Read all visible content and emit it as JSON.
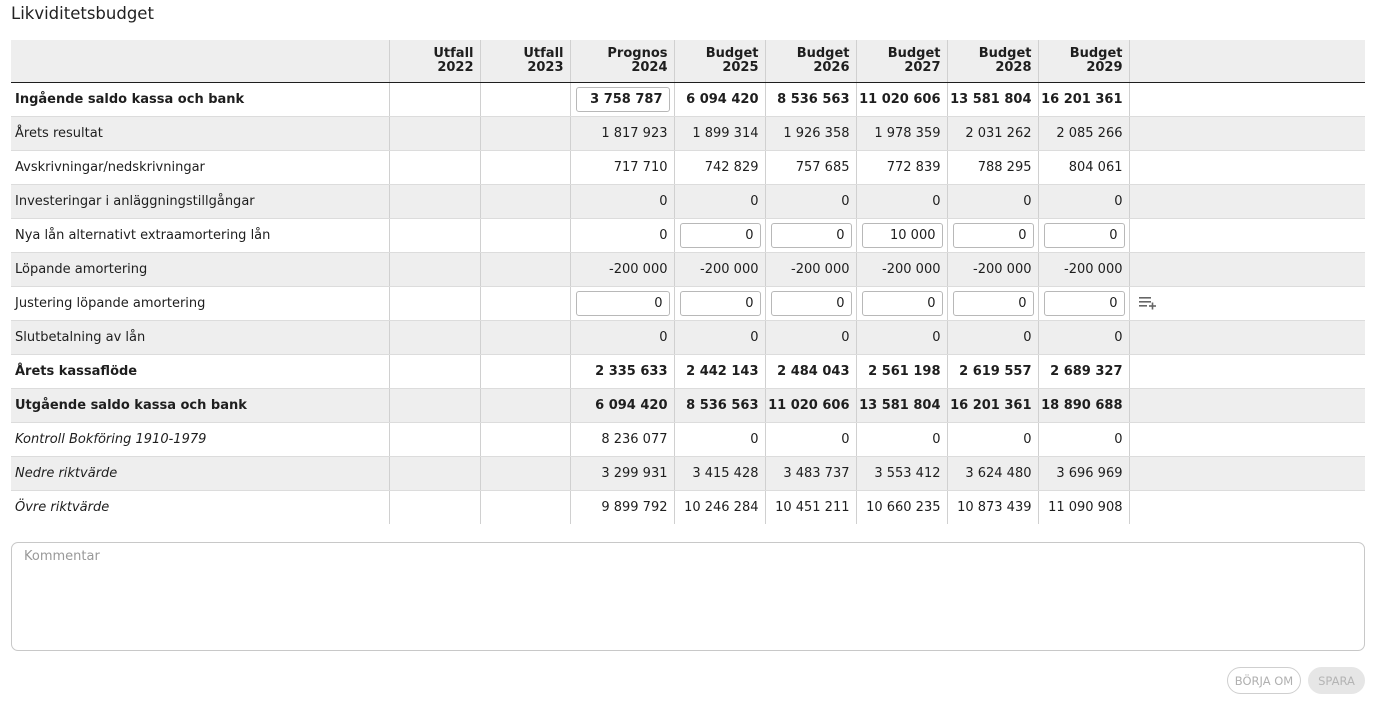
{
  "page": {
    "title": "Likviditetsbudget"
  },
  "table": {
    "columns": [
      {
        "line1": "Utfall",
        "line2": "2022"
      },
      {
        "line1": "Utfall",
        "line2": "2023"
      },
      {
        "line1": "Prognos",
        "line2": "2024"
      },
      {
        "line1": "Budget",
        "line2": "2025"
      },
      {
        "line1": "Budget",
        "line2": "2026"
      },
      {
        "line1": "Budget",
        "line2": "2027"
      },
      {
        "line1": "Budget",
        "line2": "2028"
      },
      {
        "line1": "Budget",
        "line2": "2029"
      }
    ],
    "rows": [
      {
        "label": "Ingående saldo kassa och bank",
        "values": [
          "",
          "",
          "3 758 787",
          "6 094 420",
          "8 536 563",
          "11 020 606",
          "13 581 804",
          "16 201 361"
        ]
      },
      {
        "label": "Årets resultat",
        "values": [
          "",
          "",
          "1 817 923",
          "1 899 314",
          "1 926 358",
          "1 978 359",
          "2 031 262",
          "2 085 266"
        ]
      },
      {
        "label": "Avskrivningar/nedskrivningar",
        "values": [
          "",
          "",
          "717 710",
          "742 829",
          "757 685",
          "772 839",
          "788 295",
          "804 061"
        ]
      },
      {
        "label": "Investeringar i anläggningstillgångar",
        "values": [
          "",
          "",
          "0",
          "0",
          "0",
          "0",
          "0",
          "0"
        ]
      },
      {
        "label": "Nya lån alternativt extraamortering lån",
        "values": [
          "",
          "",
          "0",
          "0",
          "0",
          "10 000",
          "0",
          "0"
        ]
      },
      {
        "label": "Löpande amortering",
        "values": [
          "",
          "",
          "-200 000",
          "-200 000",
          "-200 000",
          "-200 000",
          "-200 000",
          "-200 000"
        ]
      },
      {
        "label": "Justering löpande amortering",
        "values": [
          "",
          "",
          "0",
          "0",
          "0",
          "0",
          "0",
          "0"
        ]
      },
      {
        "label": "Slutbetalning av lån",
        "values": [
          "",
          "",
          "0",
          "0",
          "0",
          "0",
          "0",
          "0"
        ]
      },
      {
        "label": "Årets kassaflöde",
        "values": [
          "",
          "",
          "2 335 633",
          "2 442 143",
          "2 484 043",
          "2 561 198",
          "2 619 557",
          "2 689 327"
        ]
      },
      {
        "label": "Utgående saldo kassa och bank",
        "values": [
          "",
          "",
          "6 094 420",
          "8 536 563",
          "11 020 606",
          "13 581 804",
          "16 201 361",
          "18 890 688"
        ]
      },
      {
        "label": "Kontroll Bokföring 1910-1979",
        "values": [
          "",
          "",
          "8 236 077",
          "0",
          "0",
          "0",
          "0",
          "0"
        ]
      },
      {
        "label": "Nedre riktvärde",
        "values": [
          "",
          "",
          "3 299 931",
          "3 415 428",
          "3 483 737",
          "3 553 412",
          "3 624 480",
          "3 696 969"
        ]
      },
      {
        "label": "Övre riktvärde",
        "values": [
          "",
          "",
          "9 899 792",
          "10 246 284",
          "10 451 211",
          "10 660 235",
          "10 873 439",
          "11 090 908"
        ]
      }
    ]
  },
  "comment": {
    "placeholder": "Kommentar",
    "value": ""
  },
  "buttons": {
    "restart_label": "Börja om",
    "save_label": "Spara"
  },
  "icons": {
    "add_row": "playlist-add-icon"
  }
}
